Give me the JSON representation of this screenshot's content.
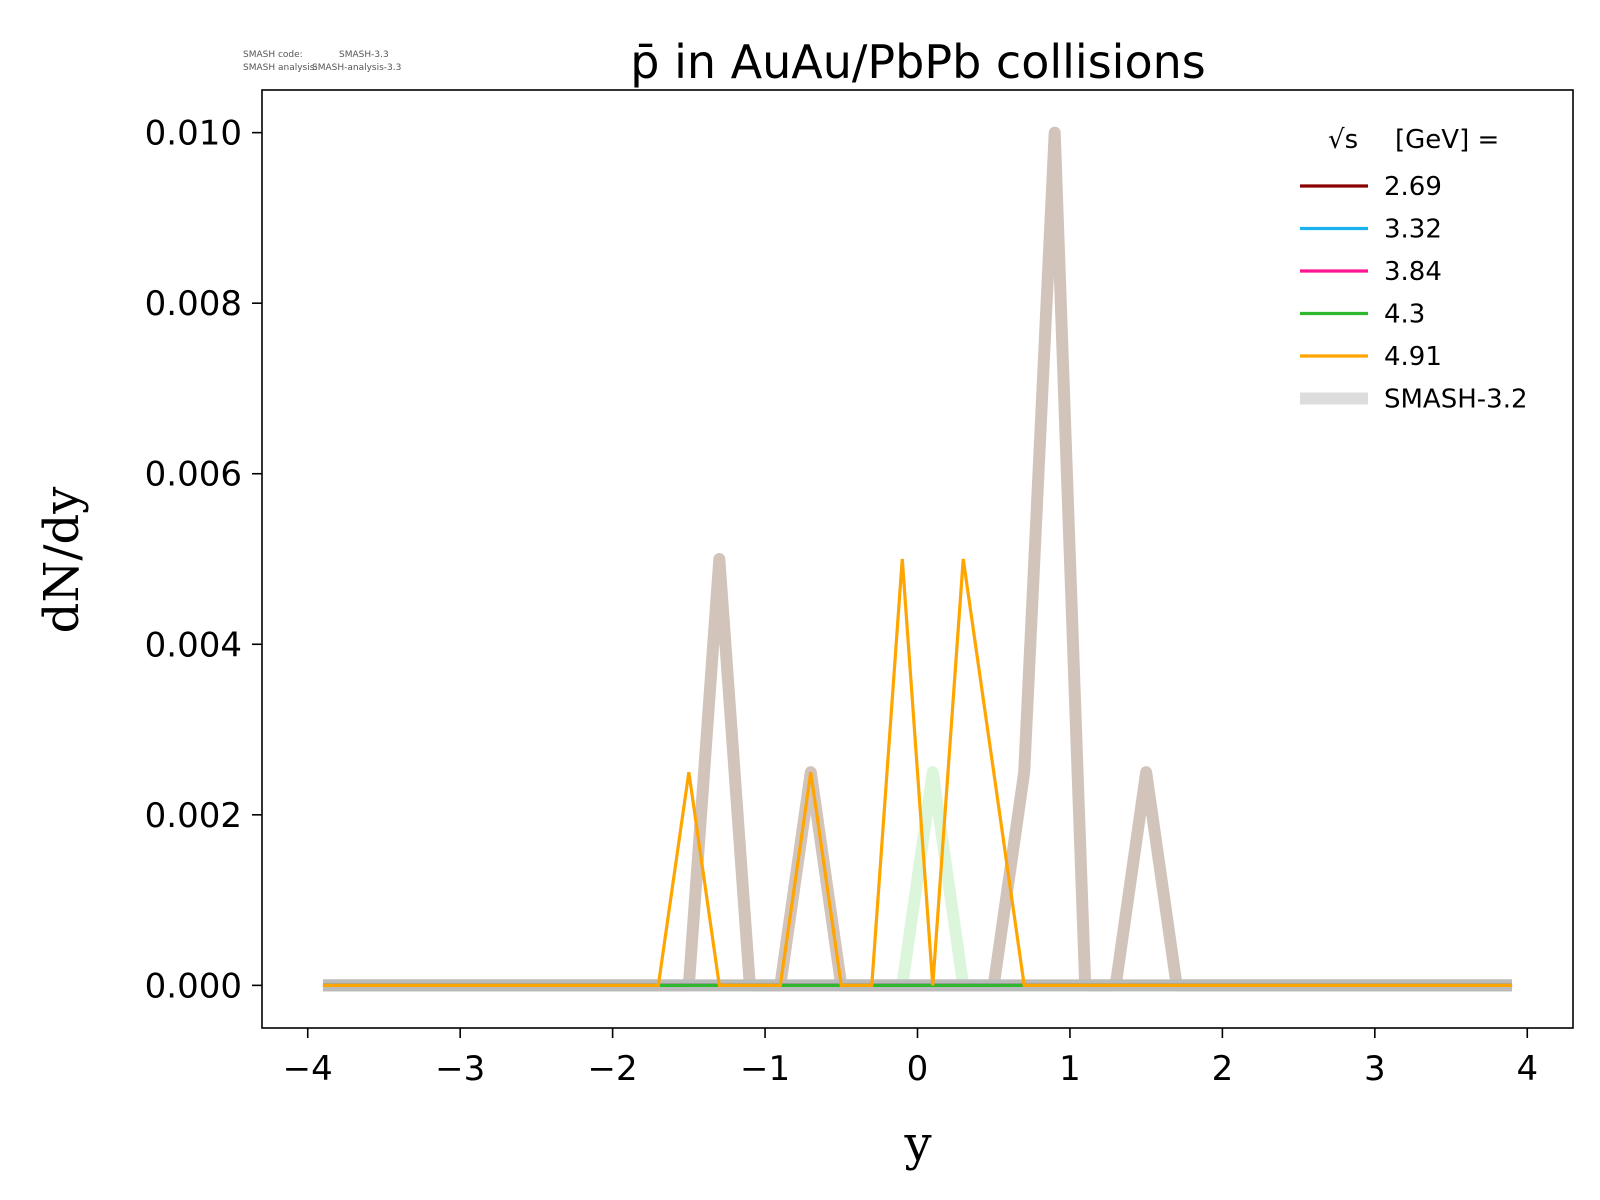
{
  "meta": {
    "code_label": "SMASH code:",
    "code_value": "SMASH-3.3",
    "analysis_label": "SMASH analysis:",
    "analysis_value": "SMASH-analysis-3.3"
  },
  "chart_data": {
    "type": "line",
    "title": "p̄ in AuAu/PbPb collisions",
    "xlabel": "y",
    "ylabel": "dN/dy",
    "xlim": [
      -4.3,
      4.3
    ],
    "ylim": [
      -0.0005,
      0.0105
    ],
    "xticks": [
      -4,
      -3,
      -2,
      -1,
      0,
      1,
      2,
      3,
      4
    ],
    "xtick_labels": [
      "−4",
      "−3",
      "−2",
      "−1",
      "0",
      "1",
      "2",
      "3",
      "4"
    ],
    "yticks": [
      0.0,
      0.002,
      0.004,
      0.006,
      0.008,
      0.01
    ],
    "ytick_labels": [
      "0.000",
      "0.002",
      "0.004",
      "0.006",
      "0.008",
      "0.010"
    ],
    "grid": false,
    "legend": {
      "position": "top-right",
      "title": "[GeV] =",
      "title_math": "√s"
    },
    "series": [
      {
        "name": "SMASH-3.2",
        "color": "#d2c4bb",
        "style": "reference",
        "x": [
          -3.9,
          -1.5,
          -1.3,
          -1.1,
          -0.9,
          -0.7,
          -0.5,
          0.5,
          0.7,
          0.9,
          1.1,
          1.3,
          1.5,
          1.7,
          3.9
        ],
        "y": [
          0.0,
          0.0,
          0.005,
          0.0,
          0.0,
          0.0025,
          0.0,
          0.0,
          0.0025,
          0.01,
          0.0,
          0.0,
          0.0025,
          0.0,
          0.0
        ]
      },
      {
        "name": "SMASH-3.2",
        "color": "#a8e8a8",
        "style": "reference",
        "x": [
          -3.9,
          -0.1,
          0.1,
          0.3,
          3.9
        ],
        "y": [
          0.0,
          0.0,
          0.0025,
          0.0,
          0.0
        ]
      },
      {
        "name": "2.69",
        "color": "#8b0000",
        "style": "main",
        "x": [
          -3.9,
          3.9
        ],
        "y": [
          0.0,
          0.0
        ]
      },
      {
        "name": "3.32",
        "color": "#1ab2ee",
        "style": "main",
        "x": [
          -3.9,
          3.9
        ],
        "y": [
          0.0,
          0.0
        ]
      },
      {
        "name": "3.84",
        "color": "#ff1493",
        "style": "main",
        "x": [
          -3.9,
          3.9
        ],
        "y": [
          0.0,
          0.0
        ]
      },
      {
        "name": "4.3",
        "color": "#2db82d",
        "style": "main",
        "x": [
          -3.9,
          3.9
        ],
        "y": [
          0.0,
          0.0
        ]
      },
      {
        "name": "4.91",
        "color": "#ffa500",
        "style": "main",
        "x": [
          -3.9,
          -1.7,
          -1.5,
          -1.3,
          -0.9,
          -0.7,
          -0.5,
          -0.3,
          -0.1,
          0.1,
          0.3,
          0.7,
          3.9
        ],
        "y": [
          0.0,
          0.0,
          0.0025,
          0.0,
          0.0,
          0.0025,
          0.0,
          0.0,
          0.005,
          0.0,
          0.005,
          0.0,
          0.0
        ]
      }
    ],
    "legend_entries": [
      {
        "label": "2.69",
        "color": "#8b0000",
        "style": "main"
      },
      {
        "label": "3.32",
        "color": "#1ab2ee",
        "style": "main"
      },
      {
        "label": "3.84",
        "color": "#ff1493",
        "style": "main"
      },
      {
        "label": "4.3",
        "color": "#2db82d",
        "style": "main"
      },
      {
        "label": "4.91",
        "color": "#ffa500",
        "style": "main"
      },
      {
        "label": "SMASH-3.2",
        "color": "#dddddd",
        "style": "reference"
      }
    ]
  }
}
